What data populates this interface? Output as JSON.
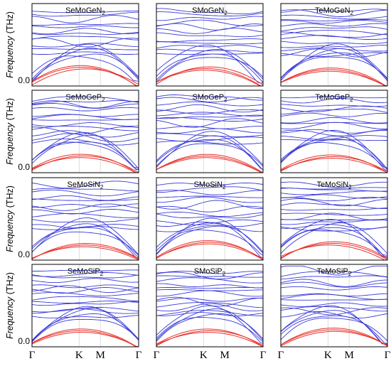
{
  "figure": {
    "y_axis_label": "Frequency",
    "y_axis_unit": "(THz)",
    "zero_tick": "0.0",
    "k_path": [
      "Γ",
      "K",
      "M",
      "Γ"
    ],
    "acoustic_color": "#e8302a",
    "optical_color": "#3a3ad8"
  },
  "chart_data": [
    {
      "type": "line",
      "title": "SeMoGeN2",
      "title_main": "SeMoGeN",
      "title_sub": "2",
      "variant": 0
    },
    {
      "type": "line",
      "title": "SMoGeN2",
      "title_main": "SMoGeN",
      "title_sub": "2",
      "variant": 1
    },
    {
      "type": "line",
      "title": "TeMoGeN2",
      "title_main": "TeMoGeN",
      "title_sub": "2",
      "variant": 2
    },
    {
      "type": "line",
      "title": "SeMoGeP2",
      "title_main": "SeMoGeP",
      "title_sub": "2",
      "variant": 3
    },
    {
      "type": "line",
      "title": "SMoGeP2",
      "title_main": "SMoGeP",
      "title_sub": "2",
      "variant": 4
    },
    {
      "type": "line",
      "title": "TeMoGeP2",
      "title_main": "TeMoGeP",
      "title_sub": "2",
      "variant": 5
    },
    {
      "type": "line",
      "title": "SeMoSiN2",
      "title_main": "SeMoSiN",
      "title_sub": "2",
      "variant": 6
    },
    {
      "type": "line",
      "title": "SMoSiN2",
      "title_main": "SMoSiN",
      "title_sub": "2",
      "variant": 7
    },
    {
      "type": "line",
      "title": "TeMoSiN2",
      "title_main": "TeMoSiN",
      "title_sub": "2",
      "variant": 8
    },
    {
      "type": "line",
      "title": "SeMoSiP2",
      "title_main": "SeMoSiP",
      "title_sub": "2",
      "variant": 9
    },
    {
      "type": "line",
      "title": "SMoSiP2",
      "title_main": "SMoSiP",
      "title_sub": "2",
      "variant": 10
    },
    {
      "type": "line",
      "title": "TeMoSiP2",
      "title_main": "TeMoSiP",
      "title_sub": "2",
      "variant": 11
    }
  ]
}
